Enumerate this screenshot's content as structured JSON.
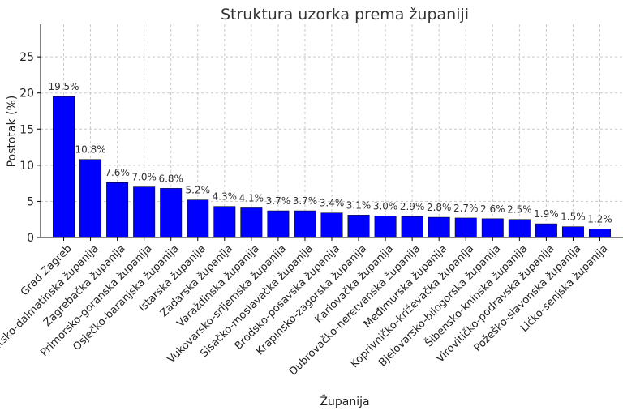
{
  "chart_data": {
    "type": "bar",
    "title": "Struktura uzorka prema županiji",
    "xlabel": "Županija",
    "ylabel": "Postotak (%)",
    "ylim": [
      0,
      29.5
    ],
    "yticks": [
      0,
      5,
      10,
      15,
      20,
      25
    ],
    "grid": true,
    "bar_color": "#0000ff",
    "categories": [
      "Grad Zagreb",
      "Splitsko-dalmatinska županija",
      "Zagrebačka županija",
      "Primorsko-goranska županija",
      "Osječko-baranjska županija",
      "Istarska županija",
      "Zadarska županija",
      "Varaždinska županija",
      "Vukovarsko-srijemska županija",
      "Sisačko-moslavačka županija",
      "Brodsko-posavska županija",
      "Krapinsko-zagorska županija",
      "Karlovačka županija",
      "Dubrovačko-neretvanska županija",
      "Međimurska županija",
      "Koprivničko-križevačka županija",
      "Bjelovarsko-bilogorska županija",
      "Šibensko-kninska županija",
      "Virovitičko-podravska županija",
      "Požeško-slavonska županija",
      "Ličko-senjska županija"
    ],
    "values": [
      19.5,
      10.8,
      7.6,
      7.0,
      6.8,
      5.2,
      4.3,
      4.1,
      3.7,
      3.7,
      3.4,
      3.1,
      3.0,
      2.9,
      2.8,
      2.7,
      2.6,
      2.5,
      1.9,
      1.5,
      1.2
    ],
    "data_labels": [
      "19.5%",
      "10.8%",
      "7.6%",
      "7.0%",
      "6.8%",
      "5.2%",
      "4.3%",
      "4.1%",
      "3.7%",
      "3.7%",
      "3.4%",
      "3.1%",
      "3.0%",
      "2.9%",
      "2.8%",
      "2.7%",
      "2.6%",
      "2.5%",
      "1.9%",
      "1.5%",
      "1.2%"
    ]
  }
}
